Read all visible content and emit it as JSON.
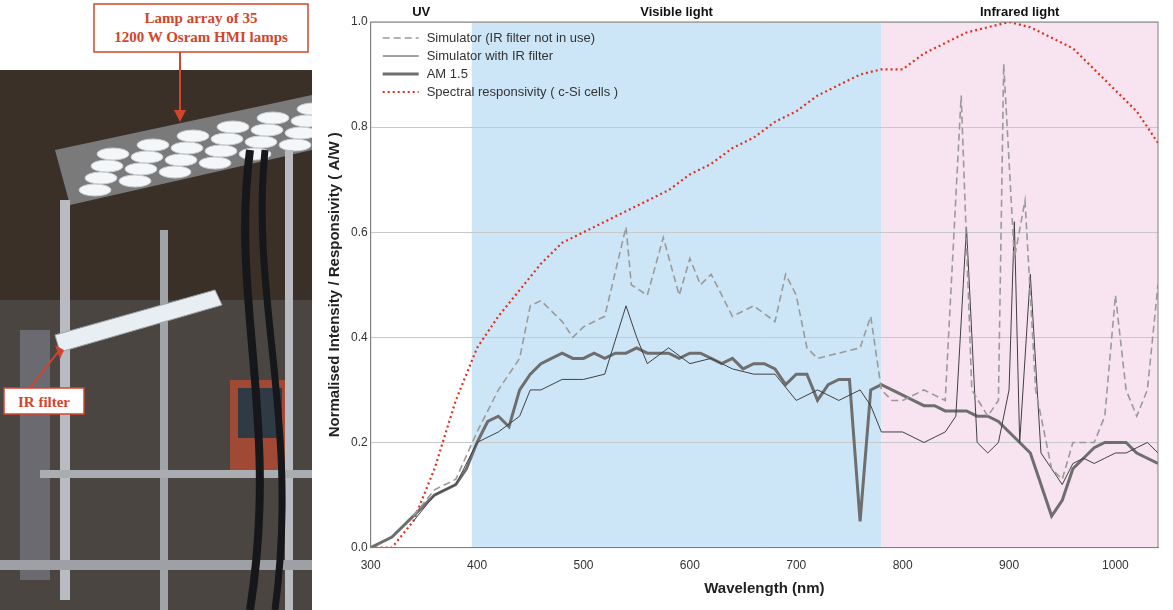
{
  "photo_annotations": {
    "lamp_array": [
      "Lamp array of 35",
      "1200 W  Osram HMI lamps"
    ],
    "ir_filter": "IR filter"
  },
  "chart_data": {
    "type": "line",
    "x_label": "Wavelength (nm)",
    "y_label": "Normalised Intensity / Responsivity ( A/W )",
    "xlim": [
      300,
      1040
    ],
    "xticks": [
      300,
      400,
      500,
      600,
      700,
      800,
      900,
      1000
    ],
    "ylim": [
      0,
      1
    ],
    "yticks": [
      {
        "value": 0,
        "label": "0.0"
      },
      0.2,
      0.4,
      0.6,
      0.8,
      {
        "value": 1,
        "label": "1.0"
      }
    ],
    "grid": true,
    "legend": "upper left",
    "bands": [
      {
        "label": "UV",
        "from": 300,
        "to": 395
      },
      {
        "label": "Visible light",
        "from": 395,
        "to": 780,
        "color": "#cde6f7"
      },
      {
        "label": "Infrared light",
        "from": 780,
        "to": 1040,
        "color": "#f7e4f0"
      }
    ],
    "series": [
      {
        "name": "Simulator (IR filter not in use)",
        "color": "#9a9a9a",
        "line_style": "dashed",
        "x": [
          340,
          360,
          380,
          400,
          420,
          440,
          450,
          460,
          470,
          480,
          490,
          500,
          520,
          540,
          545,
          560,
          575,
          590,
          600,
          610,
          620,
          640,
          660,
          680,
          690,
          700,
          710,
          720,
          740,
          760,
          770,
          780,
          790,
          800,
          820,
          840,
          855,
          865,
          880,
          890,
          895,
          905,
          915,
          925,
          940,
          950,
          960,
          980,
          990,
          1000,
          1010,
          1020,
          1030,
          1040
        ],
        "values": [
          0.06,
          0.11,
          0.13,
          0.22,
          0.3,
          0.36,
          0.46,
          0.47,
          0.45,
          0.43,
          0.4,
          0.42,
          0.44,
          0.61,
          0.5,
          0.48,
          0.59,
          0.48,
          0.55,
          0.5,
          0.52,
          0.44,
          0.46,
          0.43,
          0.52,
          0.48,
          0.38,
          0.36,
          0.37,
          0.38,
          0.44,
          0.3,
          0.28,
          0.28,
          0.3,
          0.28,
          0.86,
          0.3,
          0.25,
          0.28,
          0.92,
          0.55,
          0.66,
          0.3,
          0.15,
          0.13,
          0.2,
          0.2,
          0.25,
          0.48,
          0.3,
          0.25,
          0.3,
          0.5
        ]
      },
      {
        "name": "Simulator with IR filter",
        "color": "#404040",
        "line_style": "solid",
        "x": [
          340,
          360,
          380,
          400,
          420,
          440,
          450,
          460,
          480,
          500,
          520,
          540,
          550,
          560,
          580,
          600,
          620,
          640,
          660,
          680,
          700,
          720,
          740,
          760,
          770,
          780,
          800,
          820,
          840,
          850,
          860,
          870,
          880,
          890,
          900,
          905,
          910,
          920,
          930,
          940,
          950,
          960,
          970,
          980,
          990,
          1000,
          1010,
          1020,
          1030,
          1040
        ],
        "values": [
          0.05,
          0.1,
          0.12,
          0.2,
          0.22,
          0.25,
          0.3,
          0.3,
          0.32,
          0.32,
          0.33,
          0.46,
          0.4,
          0.35,
          0.38,
          0.35,
          0.36,
          0.34,
          0.33,
          0.33,
          0.28,
          0.3,
          0.28,
          0.3,
          0.27,
          0.22,
          0.22,
          0.2,
          0.22,
          0.25,
          0.61,
          0.2,
          0.18,
          0.2,
          0.3,
          0.62,
          0.2,
          0.52,
          0.18,
          0.15,
          0.12,
          0.16,
          0.17,
          0.16,
          0.17,
          0.18,
          0.18,
          0.19,
          0.2,
          0.18
        ]
      },
      {
        "name": "AM 1.5",
        "color": "#6e6e6e",
        "line_style": "thick",
        "x": [
          300,
          320,
          340,
          360,
          380,
          390,
          400,
          410,
          420,
          430,
          440,
          450,
          460,
          470,
          480,
          490,
          500,
          510,
          520,
          530,
          540,
          550,
          560,
          570,
          580,
          590,
          600,
          610,
          620,
          630,
          640,
          650,
          660,
          670,
          680,
          690,
          700,
          710,
          720,
          730,
          740,
          750,
          760,
          770,
          780,
          790,
          800,
          810,
          820,
          830,
          840,
          850,
          860,
          870,
          880,
          890,
          900,
          910,
          920,
          930,
          940,
          950,
          960,
          970,
          980,
          990,
          1000,
          1010,
          1020,
          1030,
          1040
        ],
        "values": [
          0,
          0.02,
          0.06,
          0.1,
          0.12,
          0.15,
          0.2,
          0.24,
          0.25,
          0.23,
          0.3,
          0.33,
          0.35,
          0.36,
          0.37,
          0.36,
          0.36,
          0.37,
          0.36,
          0.37,
          0.37,
          0.38,
          0.37,
          0.37,
          0.37,
          0.36,
          0.37,
          0.37,
          0.36,
          0.35,
          0.36,
          0.34,
          0.35,
          0.35,
          0.34,
          0.31,
          0.33,
          0.33,
          0.28,
          0.31,
          0.32,
          0.32,
          0.05,
          0.3,
          0.31,
          0.3,
          0.29,
          0.28,
          0.27,
          0.27,
          0.26,
          0.26,
          0.26,
          0.25,
          0.25,
          0.24,
          0.22,
          0.2,
          0.18,
          0.12,
          0.06,
          0.09,
          0.15,
          0.17,
          0.19,
          0.2,
          0.2,
          0.2,
          0.18,
          0.17,
          0.16
        ]
      },
      {
        "name": "Spectral responsivity ( c-Si cells )",
        "color": "#e0301e",
        "line_style": "dotted",
        "x": [
          300,
          320,
          340,
          360,
          380,
          400,
          420,
          440,
          460,
          480,
          500,
          520,
          540,
          560,
          580,
          600,
          620,
          640,
          660,
          680,
          700,
          720,
          740,
          760,
          780,
          800,
          820,
          840,
          860,
          880,
          900,
          920,
          940,
          960,
          980,
          1000,
          1020,
          1040
        ],
        "values": [
          0,
          0,
          0.05,
          0.15,
          0.28,
          0.38,
          0.44,
          0.49,
          0.54,
          0.58,
          0.6,
          0.62,
          0.64,
          0.66,
          0.68,
          0.71,
          0.73,
          0.76,
          0.78,
          0.81,
          0.83,
          0.86,
          0.88,
          0.9,
          0.91,
          0.91,
          0.94,
          0.96,
          0.98,
          0.99,
          1.0,
          0.99,
          0.97,
          0.95,
          0.91,
          0.87,
          0.83,
          0.77
        ]
      }
    ]
  }
}
